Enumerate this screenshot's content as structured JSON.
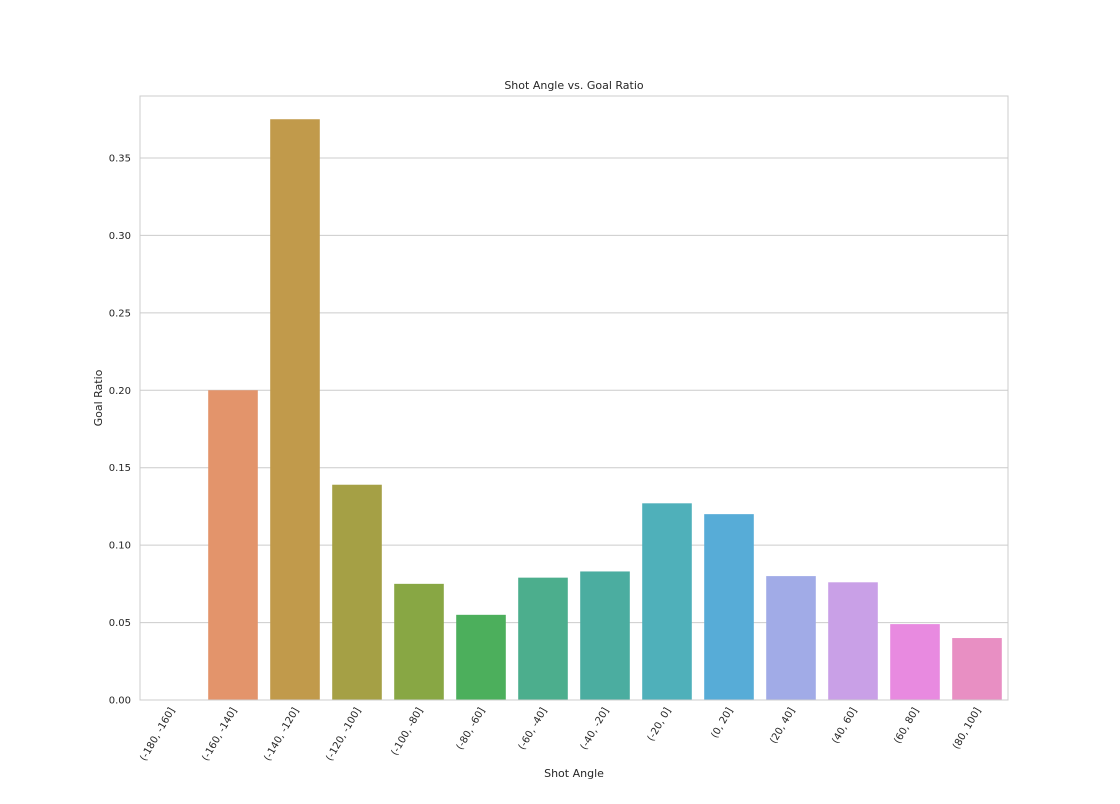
{
  "chart_data": {
    "type": "bar",
    "title": "Shot Angle vs. Goal Ratio",
    "xlabel": "Shot Angle",
    "ylabel": "Goal Ratio",
    "categories": [
      "(-180, -160]",
      "(-160, -140]",
      "(-140, -120]",
      "(-120, -100]",
      "(-100, -80]",
      "(-80, -60]",
      "(-60, -40]",
      "(-40, -20]",
      "(-20, 0]",
      "(0, 20]",
      "(20, 40]",
      "(40, 60]",
      "(60, 80]",
      "(80, 100]"
    ],
    "values": [
      0.0,
      0.2,
      0.375,
      0.139,
      0.075,
      0.055,
      0.079,
      0.083,
      0.127,
      0.12,
      0.08,
      0.076,
      0.049,
      0.04
    ],
    "colors": [
      "#e8846f",
      "#e3946b",
      "#c19a4b",
      "#a5a045",
      "#88a744",
      "#4caf5c",
      "#4cae8d",
      "#4bada0",
      "#4fb0ba",
      "#57acd7",
      "#a1abe7",
      "#c9a0e7",
      "#e88ae0",
      "#e88fc3"
    ],
    "ylim": [
      0,
      0.39
    ],
    "yticks": [
      0.0,
      0.05,
      0.1,
      0.15,
      0.2,
      0.25,
      0.3,
      0.35
    ],
    "ytick_labels": [
      "0.00",
      "0.05",
      "0.10",
      "0.15",
      "0.20",
      "0.25",
      "0.30",
      "0.35"
    ],
    "grid": "y",
    "legend": "none"
  }
}
